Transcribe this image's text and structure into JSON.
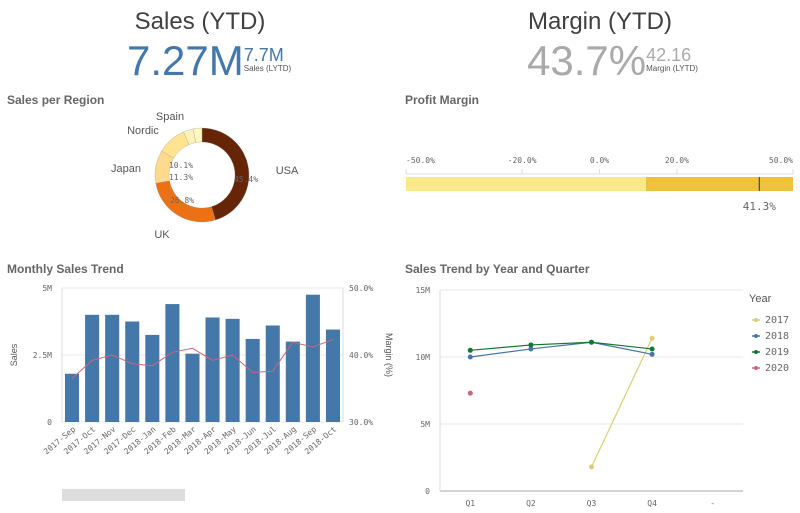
{
  "kpi_sales": {
    "title": "Sales (YTD)",
    "value": "7.27M",
    "compare_value": "7.7M",
    "compare_label": "Sales (LYTD)",
    "color": "#4477aa"
  },
  "kpi_margin": {
    "title": "Margin (YTD)",
    "value": "43.7%",
    "compare_value": "42.16",
    "compare_label": "Margin (LYTD)",
    "color": "#aaaaaa"
  },
  "chart_data": [
    {
      "type": "pie",
      "title": "Sales per Region",
      "donut": true,
      "categories": [
        "USA",
        "UK",
        "Japan",
        "Nordic",
        "Spain",
        ""
      ],
      "values": [
        45.4,
        26.8,
        11.3,
        10.1,
        3.4,
        3.0
      ],
      "data_labels": [
        "45.4%",
        "26.8%",
        "11.3%",
        "10.1%",
        "",
        ""
      ],
      "colors": [
        "#662506",
        "#ec7014",
        "#fed98e",
        "#fee391",
        "#fff1b8",
        "#fff7bc"
      ]
    },
    {
      "type": "gauge",
      "title": "Profit Margin",
      "value": 41.3,
      "value_label": "41.3%",
      "range": [
        -50,
        50
      ],
      "ticks": [
        "-50.0%",
        "-20.0%",
        "0.0%",
        "20.0%",
        "50.0%"
      ],
      "tick_values": [
        -50,
        -20,
        0,
        20,
        50
      ],
      "bands": [
        {
          "to": 12,
          "color": "#f9e98a"
        },
        {
          "to": 50,
          "color": "#eec23b"
        }
      ]
    },
    {
      "type": "bar",
      "title": "Monthly Sales Trend",
      "categories": [
        "2017-Sep",
        "2017-Oct",
        "2017-Nov",
        "2017-Dec",
        "2018-Jan",
        "2018-Feb",
        "2018-Mar",
        "2018-Apr",
        "2018-May",
        "2018-Jun",
        "2018-Jul",
        "2018-Aug",
        "2018-Sep",
        "2018-Oct"
      ],
      "series": [
        {
          "name": "Sales",
          "type": "bar",
          "values": [
            1.8,
            4.0,
            4.0,
            3.75,
            3.25,
            4.4,
            2.55,
            3.9,
            3.85,
            3.1,
            3.6,
            3.0,
            4.75,
            3.45
          ],
          "color": "#4477aa"
        },
        {
          "name": "Margin (%)",
          "type": "line",
          "axis": "right",
          "values": [
            36.5,
            39.2,
            40.0,
            38.7,
            38.4,
            40.4,
            41.0,
            39.2,
            40.0,
            37.4,
            37.6,
            41.9,
            41.2,
            42.3
          ],
          "color": "#cc6677"
        }
      ],
      "ylabel": "Sales",
      "y2label": "Margin (%)",
      "ylim": [
        0,
        5
      ],
      "y2lim": [
        30,
        50
      ],
      "yticks": [
        "0",
        "2.5M",
        "5M"
      ],
      "y2ticks": [
        "30.0%",
        "40.0%",
        "50.0%"
      ],
      "grid": true
    },
    {
      "type": "line",
      "title": "Sales Trend by Year and Quarter",
      "categories": [
        "Q1",
        "Q2",
        "Q3",
        "Q4",
        "-"
      ],
      "series": [
        {
          "name": "2017",
          "values": [
            null,
            null,
            1.8,
            11.4,
            null
          ],
          "color": "#ddcc77"
        },
        {
          "name": "2018",
          "values": [
            10.0,
            10.6,
            11.1,
            10.2,
            null
          ],
          "color": "#4477aa"
        },
        {
          "name": "2019",
          "values": [
            10.5,
            10.9,
            11.1,
            10.6,
            null
          ],
          "color": "#117733"
        },
        {
          "name": "2020",
          "values": [
            7.3,
            null,
            null,
            null,
            null
          ],
          "color": "#cc6677"
        }
      ],
      "ylim": [
        0,
        15
      ],
      "yticks": [
        "0",
        "5M",
        "10M",
        "15M"
      ],
      "legend_title": "Year",
      "legend": "right",
      "grid": true
    }
  ]
}
